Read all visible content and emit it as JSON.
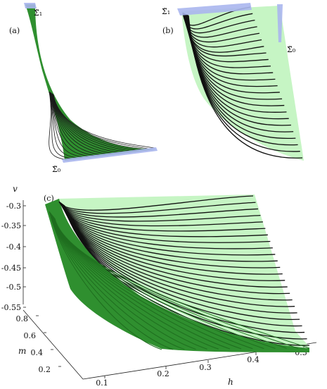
{
  "panels": [
    {
      "label": "(a)",
      "sigma_labels": [
        "Σ̃₁",
        "Σ̃₀"
      ]
    },
    {
      "label": "(b)",
      "sigma_labels": [
        "Σ̃₁",
        "Σ̃₀"
      ]
    },
    {
      "label": "(c)"
    }
  ],
  "axes_c": {
    "v_label": "v",
    "m_label": "m",
    "h_label": "h",
    "v_ticks": [
      "-0.3",
      "-0.35",
      "-0.4",
      "-0.45",
      "-0.5",
      "-0.55"
    ],
    "m_ticks": [
      "0.8",
      "0.6",
      "0.4",
      "0.2"
    ],
    "h_ticks": [
      "0.1",
      "0.2",
      "0.3",
      "0.4",
      "0.5"
    ]
  },
  "colors": {
    "surface_light": "#c6f5c4",
    "surface_dark": "#2b8a2b",
    "curve": "#111111",
    "plane": "#aab6ee"
  }
}
